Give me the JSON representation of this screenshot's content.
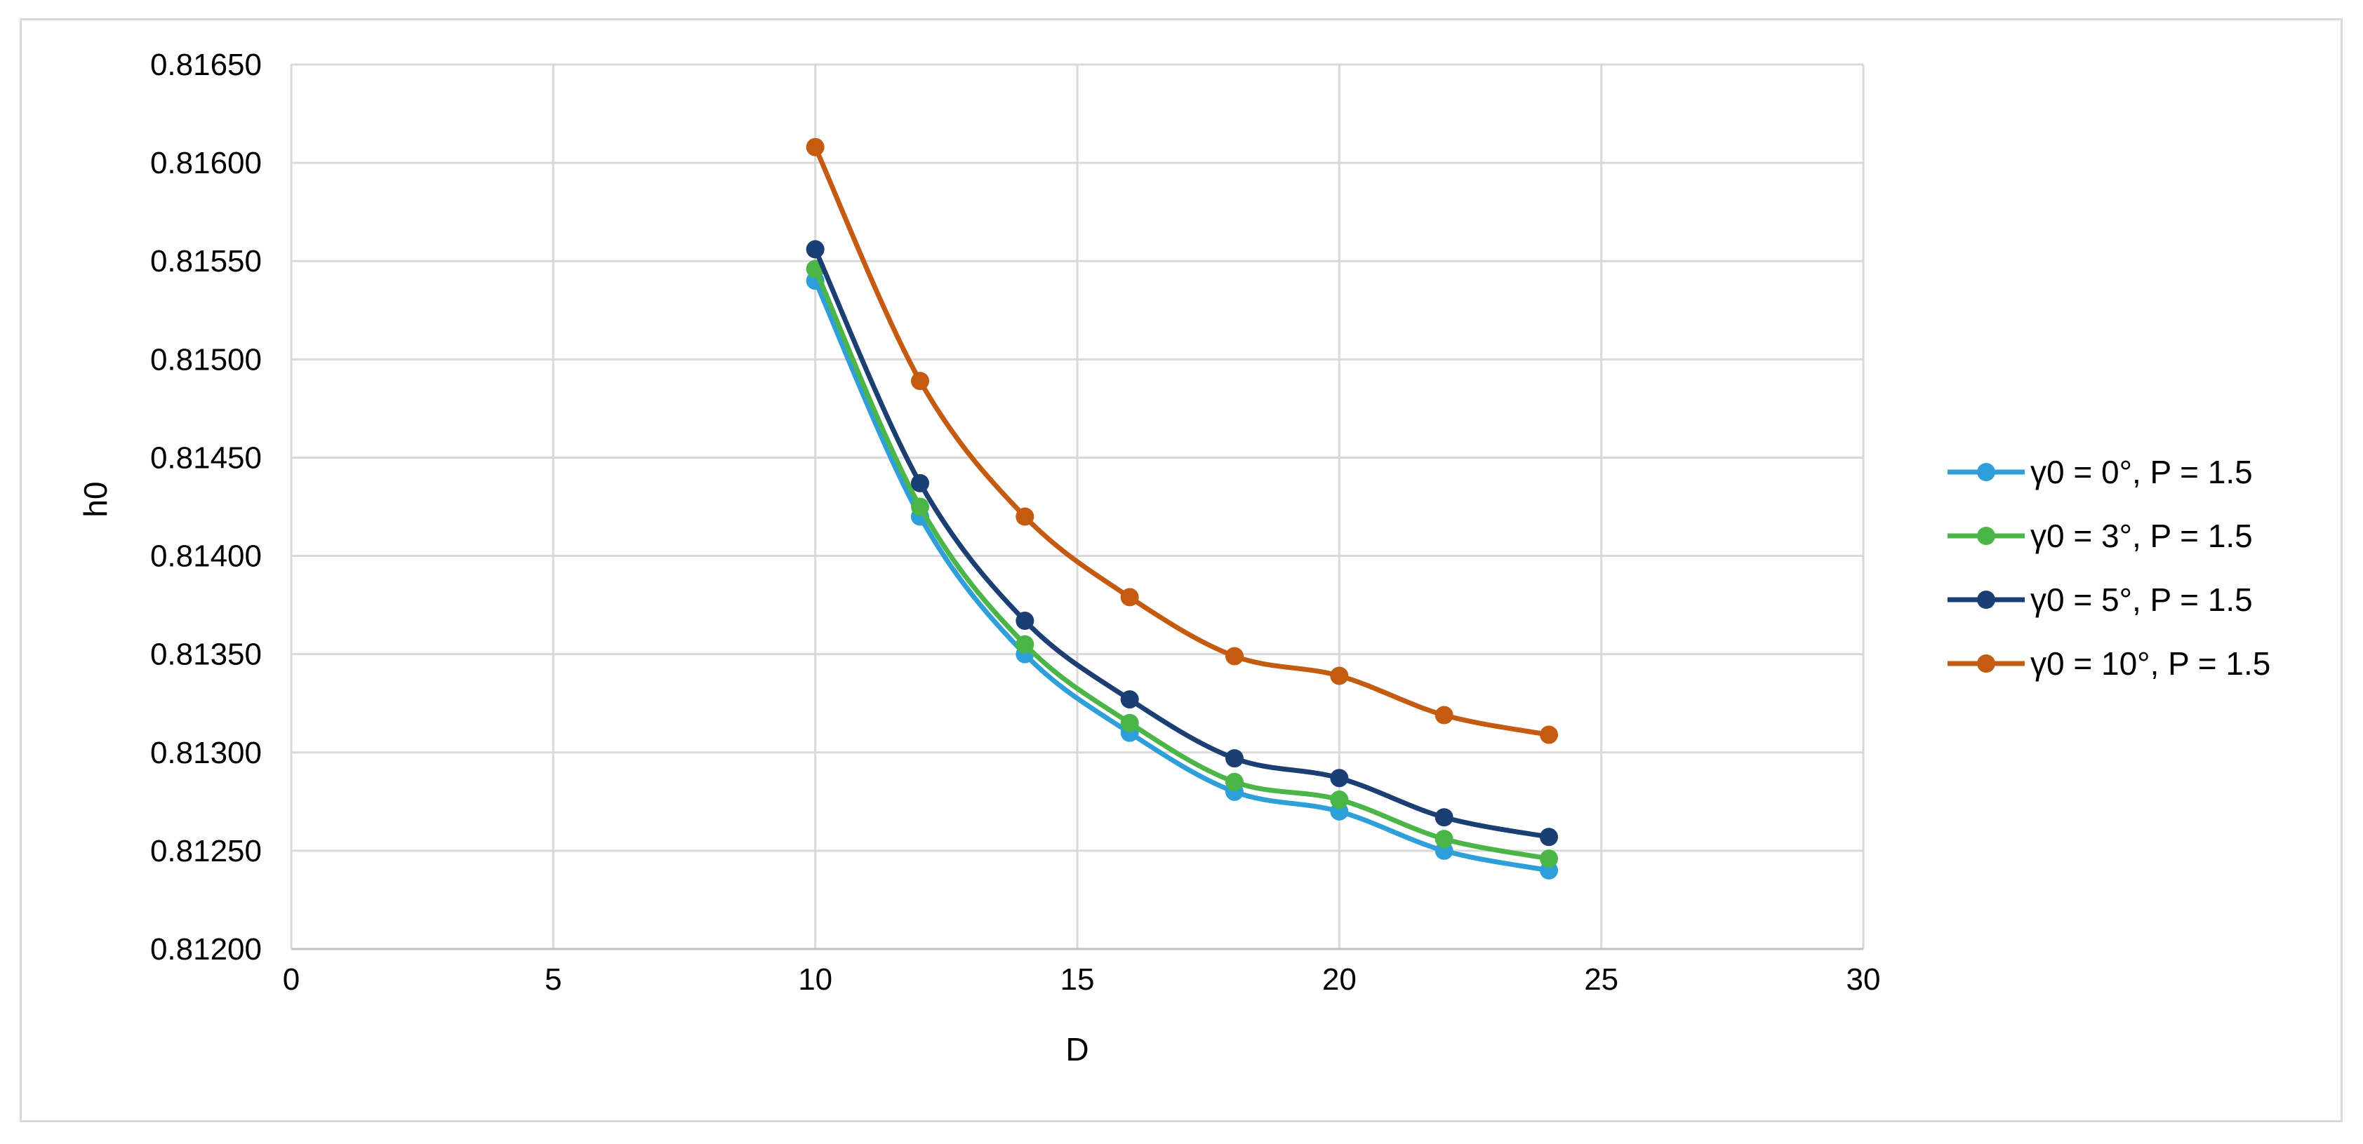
{
  "chart_data": {
    "type": "line",
    "title": "",
    "xlabel": "D",
    "ylabel": "h0",
    "xlim": [
      0,
      30
    ],
    "ylim": [
      0.812,
      0.8165
    ],
    "x_ticks": [
      "0",
      "5",
      "10",
      "15",
      "20",
      "25",
      "30"
    ],
    "y_ticks": [
      "0.81200",
      "0.81250",
      "0.81300",
      "0.81350",
      "0.81400",
      "0.81450",
      "0.81500",
      "0.81550",
      "0.81600",
      "0.81650"
    ],
    "grid": true,
    "legend_position": "right",
    "smooth": true,
    "x": [
      10,
      12,
      14,
      16,
      18,
      20,
      22,
      24
    ],
    "series": [
      {
        "name": "γ0 = 0°, P = 1.5",
        "color": "#2e9fd8",
        "values": [
          0.8154,
          0.8142,
          0.8135,
          0.8131,
          0.8128,
          0.8127,
          0.8125,
          0.8124
        ]
      },
      {
        "name": "γ0 = 3°, P = 1.5",
        "color": "#4cb548",
        "values": [
          0.81546,
          0.81425,
          0.81355,
          0.81315,
          0.81285,
          0.81276,
          0.81256,
          0.81246
        ]
      },
      {
        "name": "γ0 = 5°, P = 1.5",
        "color": "#1b3f73",
        "values": [
          0.81556,
          0.81437,
          0.81367,
          0.81327,
          0.81297,
          0.81287,
          0.81267,
          0.81257
        ]
      },
      {
        "name": "γ0 = 10°, P = 1.5",
        "color": "#c55a11",
        "values": [
          0.81608,
          0.81489,
          0.8142,
          0.81379,
          0.81349,
          0.81339,
          0.81319,
          0.81309
        ]
      }
    ]
  }
}
